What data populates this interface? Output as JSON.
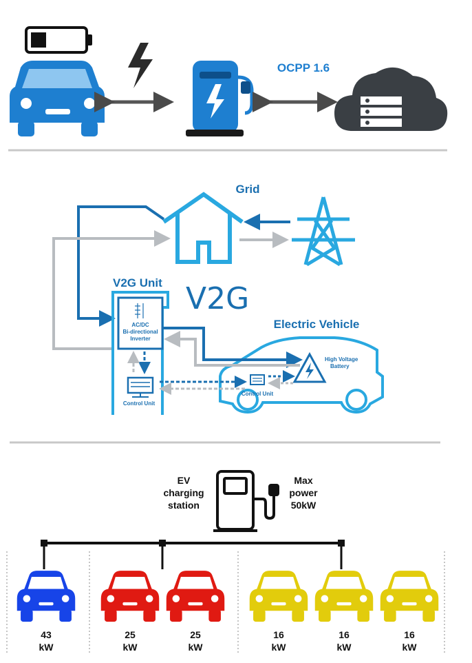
{
  "top": {
    "protocol_label": "OCPP 1.6"
  },
  "v2g": {
    "grid_label": "Grid",
    "unit_label": "V2G Unit",
    "big_title": "V2G",
    "ev_label": "Electric Vehicle",
    "inverter_line1": "AC/DC",
    "inverter_line2": "Bi-directional",
    "inverter_line3": "Inverter",
    "control_unit_label": "Control Unit",
    "car_control_unit_label": "Control Unit",
    "battery_line1": "High Voltage",
    "battery_line2": "Battery",
    "colors": {
      "blue": "#1a6fb0",
      "light_blue": "#29a8e0",
      "grey": "#b8bcc0"
    }
  },
  "station": {
    "left_line1": "EV",
    "left_line2": "charging",
    "left_line3": "station",
    "right_line1": "Max",
    "right_line2": "power",
    "right_line3": "50kW"
  },
  "cars": [
    {
      "power": "43",
      "unit": "kW",
      "color": "#1744e8"
    },
    {
      "power": "25",
      "unit": "kW",
      "color": "#e01a12"
    },
    {
      "power": "25",
      "unit": "kW",
      "color": "#e01a12"
    },
    {
      "power": "16",
      "unit": "kW",
      "color": "#e2cc0c"
    },
    {
      "power": "16",
      "unit": "kW",
      "color": "#e2cc0c"
    },
    {
      "power": "16",
      "unit": "kW",
      "color": "#e2cc0c"
    }
  ],
  "icons": [
    "battery-low-icon",
    "car-icon",
    "lightning-icon",
    "charger-icon",
    "cloud-server-icon",
    "house-icon",
    "pylon-icon",
    "fuel-pump-icon"
  ]
}
